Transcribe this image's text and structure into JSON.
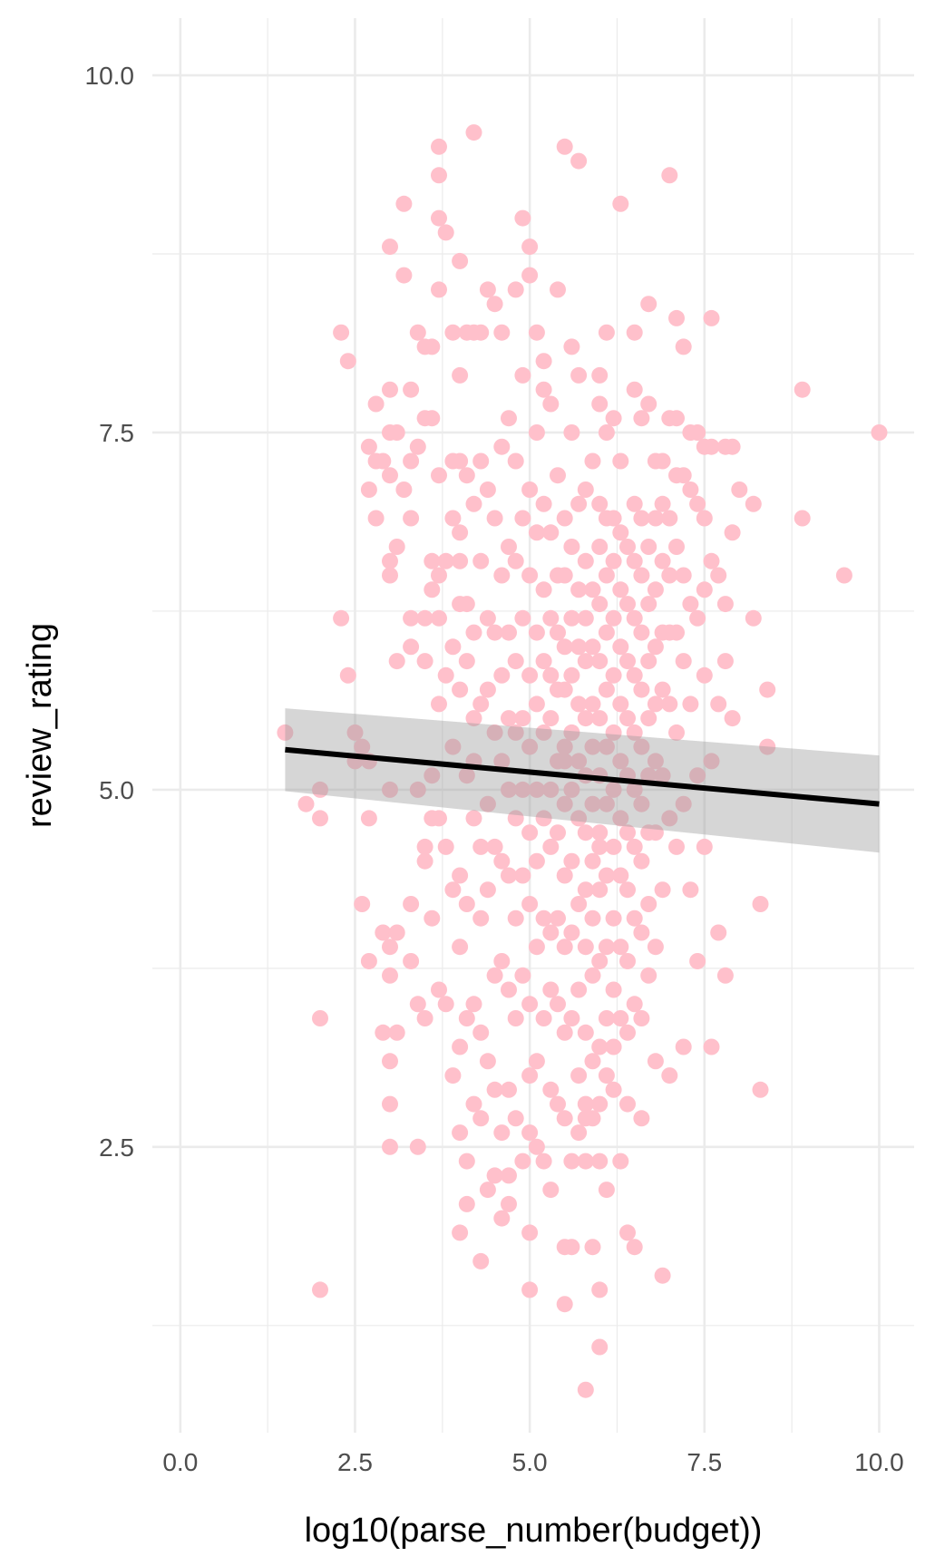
{
  "chart_data": {
    "type": "scatter",
    "title": "",
    "xlabel": "log10(parse_number(budget))",
    "ylabel": "review_rating",
    "xlim": [
      -0.4,
      10.5
    ],
    "ylim": [
      0.5,
      10.4
    ],
    "x_ticks": [
      {
        "value": 0.0,
        "label": "0.0"
      },
      {
        "value": 2.5,
        "label": "2.5"
      },
      {
        "value": 5.0,
        "label": "5.0"
      },
      {
        "value": 7.5,
        "label": "7.5"
      },
      {
        "value": 10.0,
        "label": "10.0"
      }
    ],
    "y_ticks": [
      {
        "value": 2.5,
        "label": "2.5"
      },
      {
        "value": 5.0,
        "label": "5.0"
      },
      {
        "value": 7.5,
        "label": "7.5"
      },
      {
        "value": 10.0,
        "label": "10.0"
      }
    ],
    "grid": true,
    "point_color": "#FFC0CB",
    "fit_line": {
      "method": "lm",
      "color": "#000000",
      "x": [
        1.5,
        10.0
      ],
      "y": [
        5.28,
        4.9
      ],
      "band_color": "#999999",
      "band_lower": [
        4.99,
        4.56
      ],
      "band_upper": [
        5.57,
        5.24
      ]
    },
    "points": {
      "x": [
        1.5,
        1.8,
        2.0,
        2.0,
        2.0,
        2.3,
        2.3,
        2.4,
        2.4,
        2.5,
        2.5,
        2.6,
        2.7,
        2.7,
        2.7,
        2.7,
        2.7,
        2.8,
        2.8,
        2.8,
        2.9,
        2.9,
        2.9,
        3.0,
        3.0,
        3.0,
        3.0,
        3.0,
        3.0,
        3.0,
        3.0,
        3.0,
        3.0,
        3.0,
        3.0,
        3.1,
        3.1,
        3.1,
        3.1,
        3.1,
        3.2,
        3.2,
        3.2,
        3.3,
        3.3,
        3.3,
        3.3,
        3.3,
        3.3,
        3.3,
        3.4,
        3.4,
        3.4,
        3.4,
        3.4,
        3.5,
        3.5,
        3.5,
        3.5,
        3.5,
        3.5,
        3.5,
        3.6,
        3.6,
        3.6,
        3.6,
        3.6,
        3.6,
        3.7,
        3.7,
        3.7,
        3.7,
        3.7,
        3.7,
        3.7,
        3.7,
        3.7,
        3.7,
        3.8,
        3.8,
        3.8,
        3.8,
        3.8,
        3.9,
        3.9,
        3.9,
        3.9,
        3.9,
        3.9,
        3.9,
        4.0,
        4.0,
        4.0,
        4.0,
        4.0,
        4.0,
        4.0,
        4.0,
        4.0,
        4.0,
        4.0,
        4.1,
        4.1,
        4.1,
        4.1,
        4.1,
        4.1,
        4.1,
        4.1,
        4.1,
        4.2,
        4.2,
        4.2,
        4.2,
        4.2,
        4.2,
        4.2,
        4.2,
        4.3,
        4.3,
        4.3,
        4.3,
        4.3,
        4.3,
        4.3,
        4.3,
        4.3,
        4.4,
        4.4,
        4.4,
        4.4,
        4.4,
        4.4,
        4.4,
        4.4,
        4.5,
        4.5,
        4.5,
        4.5,
        4.5,
        4.5,
        4.5,
        4.5,
        4.6,
        4.6,
        4.6,
        4.6,
        4.6,
        4.6,
        4.6,
        4.6,
        4.6,
        4.7,
        4.7,
        4.7,
        4.7,
        4.7,
        4.7,
        4.7,
        4.7,
        4.7,
        4.7,
        4.8,
        4.8,
        4.8,
        4.8,
        4.8,
        4.8,
        4.8,
        4.8,
        4.8,
        4.9,
        4.9,
        4.9,
        4.9,
        4.9,
        4.9,
        4.9,
        4.9,
        4.9,
        5.0,
        5.0,
        5.0,
        5.0,
        5.0,
        5.0,
        5.0,
        5.0,
        5.0,
        5.0,
        5.0,
        5.0,
        5.0,
        5.1,
        5.1,
        5.1,
        5.1,
        5.1,
        5.1,
        5.1,
        5.1,
        5.1,
        5.1,
        5.2,
        5.2,
        5.2,
        5.2,
        5.2,
        5.2,
        5.2,
        5.2,
        5.2,
        5.2,
        5.3,
        5.3,
        5.3,
        5.3,
        5.3,
        5.3,
        5.3,
        5.3,
        5.3,
        5.3,
        5.3,
        5.4,
        5.4,
        5.4,
        5.4,
        5.4,
        5.4,
        5.4,
        5.4,
        5.4,
        5.4,
        5.5,
        5.5,
        5.5,
        5.5,
        5.5,
        5.5,
        5.5,
        5.5,
        5.5,
        5.5,
        5.5,
        5.5,
        5.5,
        5.6,
        5.6,
        5.6,
        5.6,
        5.6,
        5.6,
        5.6,
        5.6,
        5.6,
        5.6,
        5.6,
        5.6,
        5.7,
        5.7,
        5.7,
        5.7,
        5.7,
        5.7,
        5.7,
        5.7,
        5.7,
        5.7,
        5.7,
        5.7,
        5.8,
        5.8,
        5.8,
        5.8,
        5.8,
        5.8,
        5.8,
        5.8,
        5.8,
        5.8,
        5.8,
        5.8,
        5.8,
        5.9,
        5.9,
        5.9,
        5.9,
        5.9,
        5.9,
        5.9,
        5.9,
        5.9,
        5.9,
        5.9,
        5.9,
        6.0,
        6.0,
        6.0,
        6.0,
        6.0,
        6.0,
        6.0,
        6.0,
        6.0,
        6.0,
        6.0,
        6.0,
        6.0,
        6.0,
        6.0,
        6.0,
        6.1,
        6.1,
        6.1,
        6.1,
        6.1,
        6.1,
        6.1,
        6.1,
        6.1,
        6.1,
        6.1,
        6.1,
        6.1,
        6.2,
        6.2,
        6.2,
        6.2,
        6.2,
        6.2,
        6.2,
        6.2,
        6.2,
        6.2,
        6.2,
        6.2,
        6.3,
        6.3,
        6.3,
        6.3,
        6.3,
        6.3,
        6.3,
        6.3,
        6.3,
        6.3,
        6.3,
        6.3,
        6.4,
        6.4,
        6.4,
        6.4,
        6.4,
        6.4,
        6.4,
        6.4,
        6.4,
        6.4,
        6.4,
        6.5,
        6.5,
        6.5,
        6.5,
        6.5,
        6.5,
        6.5,
        6.5,
        6.5,
        6.5,
        6.5,
        6.5,
        6.6,
        6.6,
        6.6,
        6.6,
        6.6,
        6.6,
        6.6,
        6.6,
        6.6,
        6.6,
        6.6,
        6.7,
        6.7,
        6.7,
        6.7,
        6.7,
        6.7,
        6.7,
        6.7,
        6.7,
        6.7,
        6.8,
        6.8,
        6.8,
        6.8,
        6.8,
        6.8,
        6.8,
        6.8,
        6.8,
        6.9,
        6.9,
        6.9,
        6.9,
        6.9,
        6.9,
        6.9,
        6.9,
        7.0,
        7.0,
        7.0,
        7.0,
        7.0,
        7.0,
        7.0,
        7.0,
        7.1,
        7.1,
        7.1,
        7.1,
        7.1,
        7.1,
        7.1,
        7.2,
        7.2,
        7.2,
        7.2,
        7.2,
        7.2,
        7.3,
        7.3,
        7.3,
        7.3,
        7.3,
        7.4,
        7.4,
        7.4,
        7.4,
        7.4,
        7.5,
        7.5,
        7.5,
        7.5,
        7.5,
        7.6,
        7.6,
        7.6,
        7.6,
        7.6,
        7.7,
        7.7,
        7.7,
        7.8,
        7.8,
        7.8,
        7.8,
        7.9,
        7.9,
        7.9,
        8.0,
        8.2,
        8.2,
        8.3,
        8.3,
        8.4,
        8.4,
        8.9,
        8.9,
        9.5,
        10.0,
        5.8,
        5.5,
        6.0,
        4.0,
        3.6,
        4.2,
        2.0,
        2.6
      ],
      "y": [
        5.4,
        4.9,
        4.8,
        3.4,
        1.5,
        6.2,
        8.2,
        8.0,
        5.8,
        5.2,
        5.4,
        4.2,
        7.4,
        7.1,
        5.2,
        4.8,
        3.8,
        6.9,
        7.7,
        7.3,
        7.3,
        4.0,
        3.3,
        7.5,
        7.2,
        6.6,
        6.5,
        5.0,
        3.9,
        3.7,
        3.1,
        2.8,
        2.5,
        7.8,
        8.8,
        7.5,
        6.7,
        5.9,
        4.0,
        3.3,
        8.6,
        9.1,
        7.1,
        7.8,
        7.3,
        6.9,
        6.0,
        6.2,
        4.2,
        3.8,
        8.2,
        7.4,
        5.0,
        3.5,
        2.5,
        8.1,
        7.6,
        6.2,
        5.9,
        4.6,
        4.5,
        3.4,
        8.1,
        7.6,
        6.6,
        6.4,
        5.1,
        4.1,
        9.5,
        9.3,
        9.0,
        8.5,
        7.2,
        6.5,
        6.2,
        5.6,
        4.8,
        3.6,
        8.9,
        6.6,
        5.8,
        4.6,
        3.5,
        8.2,
        7.3,
        6.9,
        6.0,
        5.3,
        4.3,
        3.0,
        8.7,
        7.9,
        7.3,
        6.8,
        6.3,
        5.7,
        4.4,
        3.9,
        3.2,
        2.6,
        1.9,
        8.2,
        7.2,
        6.3,
        5.9,
        5.1,
        4.2,
        3.4,
        2.4,
        2.1,
        9.6,
        8.2,
        7.0,
        6.1,
        5.5,
        4.8,
        3.5,
        2.8,
        8.2,
        7.3,
        6.6,
        5.6,
        4.6,
        4.1,
        3.3,
        2.7,
        1.7,
        8.5,
        7.1,
        6.2,
        5.7,
        4.9,
        4.3,
        3.1,
        2.2,
        8.4,
        6.9,
        6.1,
        5.4,
        4.6,
        3.7,
        2.9,
        2.3,
        8.2,
        7.4,
        6.5,
        5.8,
        5.2,
        4.5,
        3.8,
        2.6,
        2.0,
        7.6,
        6.7,
        6.1,
        5.5,
        5.0,
        4.4,
        3.6,
        2.9,
        2.3,
        2.1,
        8.5,
        7.3,
        6.6,
        5.9,
        5.4,
        4.8,
        4.1,
        3.4,
        2.7,
        9.0,
        7.9,
        6.9,
        6.2,
        5.5,
        5.0,
        4.4,
        3.7,
        2.4,
        8.8,
        8.6,
        7.1,
        6.5,
        5.8,
        5.3,
        4.7,
        4.2,
        3.5,
        3.0,
        2.6,
        1.9,
        1.5,
        8.2,
        7.5,
        6.8,
        6.1,
        5.6,
        5.0,
        4.5,
        3.9,
        3.1,
        2.5,
        8.0,
        7.8,
        7.0,
        6.4,
        5.9,
        5.4,
        4.8,
        4.1,
        3.4,
        2.4,
        7.7,
        6.8,
        6.2,
        5.8,
        5.5,
        5.0,
        4.6,
        4.0,
        3.6,
        2.9,
        2.2,
        8.5,
        7.2,
        6.5,
        6.1,
        5.7,
        5.2,
        4.7,
        4.1,
        3.5,
        2.8,
        9.5,
        6.9,
        6.5,
        6.0,
        5.7,
        5.3,
        4.9,
        4.4,
        3.9,
        3.3,
        2.7,
        1.8,
        1.4,
        8.1,
        7.5,
        6.7,
        6.2,
        5.8,
        5.4,
        5.0,
        4.5,
        4.0,
        3.4,
        2.4,
        1.8,
        9.4,
        7.9,
        7.0,
        6.4,
        6.0,
        5.6,
        5.2,
        4.8,
        4.2,
        3.6,
        3.0,
        2.6,
        7.1,
        6.6,
        6.2,
        5.9,
        5.5,
        5.1,
        4.7,
        4.3,
        3.9,
        3.3,
        2.8,
        2.4,
        0.8,
        6.4,
        6.0,
        5.6,
        5.3,
        4.9,
        4.5,
        4.1,
        3.7,
        3.1,
        2.7,
        1.8,
        7.3,
        7.7,
        7.9,
        7.0,
        6.7,
        6.3,
        5.9,
        5.5,
        5.1,
        4.7,
        4.3,
        3.8,
        3.2,
        2.8,
        2.4,
        1.1,
        1.5,
        8.2,
        7.5,
        6.9,
        6.5,
        6.1,
        5.7,
        5.3,
        4.9,
        4.4,
        3.9,
        3.4,
        3.0,
        2.2,
        7.6,
        6.9,
        6.6,
        6.2,
        5.8,
        5.4,
        5.0,
        4.6,
        4.1,
        3.6,
        3.2,
        2.9,
        9.1,
        7.3,
        6.8,
        6.4,
        6.0,
        5.6,
        5.2,
        4.8,
        4.4,
        3.9,
        3.4,
        2.4,
        6.7,
        6.3,
        5.9,
        5.5,
        5.1,
        4.7,
        4.3,
        3.8,
        3.3,
        2.8,
        1.9,
        8.2,
        7.8,
        7.0,
        6.6,
        6.2,
        5.8,
        5.4,
        5.0,
        4.6,
        4.1,
        3.5,
        1.8,
        7.6,
        6.9,
        6.5,
        6.1,
        5.7,
        5.3,
        4.9,
        4.5,
        4.0,
        3.4,
        2.7,
        8.4,
        7.7,
        6.7,
        6.3,
        5.9,
        5.5,
        5.1,
        4.7,
        4.2,
        3.7,
        7.3,
        6.9,
        6.4,
        6.0,
        5.6,
        5.2,
        4.7,
        3.9,
        3.1,
        7.3,
        7.0,
        6.6,
        6.1,
        5.7,
        5.1,
        4.3,
        1.6,
        9.3,
        7.6,
        6.9,
        6.5,
        6.1,
        5.6,
        4.8,
        3.0,
        8.3,
        7.6,
        7.2,
        6.7,
        6.1,
        5.4,
        4.6,
        8.1,
        7.2,
        6.5,
        5.9,
        4.9,
        3.2,
        7.5,
        7.1,
        6.3,
        5.6,
        4.3,
        7.5,
        7.0,
        6.2,
        5.1,
        3.8,
        7.4,
        6.9,
        6.4,
        5.8,
        4.6,
        8.3,
        7.4,
        6.6,
        5.2,
        3.2,
        6.5,
        5.6,
        4.0,
        7.4,
        6.3,
        5.9,
        3.7,
        7.4,
        6.8,
        5.5,
        7.1,
        7.0,
        6.2,
        4.2,
        2.9,
        5.7,
        5.3,
        7.8,
        6.9,
        6.5,
        7.5,
        2.7,
        5.2,
        4.6,
        6.6,
        4.8,
        5.2,
        5.0,
        5.3
      ]
    }
  }
}
